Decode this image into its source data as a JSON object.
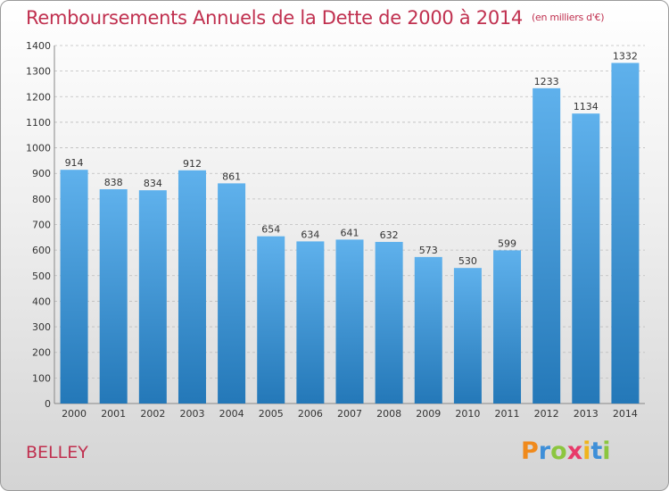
{
  "header": {
    "title": "Remboursements Annuels de la Dette de 2000 à 2014",
    "unit": "(en milliers d'€)"
  },
  "footer": {
    "commune": "BELLEY",
    "logo_text": "Proxiti",
    "logo_letters": [
      {
        "ch": "P",
        "color": "#f08a1c"
      },
      {
        "ch": "r",
        "color": "#3e8fd8"
      },
      {
        "ch": "o",
        "color": "#8cc63f"
      },
      {
        "ch": "x",
        "color": "#e83a6a"
      },
      {
        "ch": "i",
        "color": "#f0b41c"
      },
      {
        "ch": "t",
        "color": "#3e8fd8"
      },
      {
        "ch": "i",
        "color": "#8cc63f"
      }
    ]
  },
  "colors": {
    "bar_top": "#5fb1ec",
    "bar_bottom": "#2478b8",
    "title": "#c0304f",
    "grid": "#bdbdbd",
    "axis_text": "#333333"
  },
  "chart_data": {
    "type": "bar",
    "categories": [
      "2000",
      "2001",
      "2002",
      "2003",
      "2004",
      "2005",
      "2006",
      "2007",
      "2008",
      "2009",
      "2010",
      "2011",
      "2012",
      "2013",
      "2014"
    ],
    "values": [
      914,
      838,
      834,
      912,
      861,
      654,
      634,
      641,
      632,
      573,
      530,
      599,
      1233,
      1134,
      1332
    ],
    "ylim": [
      0,
      1400
    ],
    "yticks": [
      0,
      100,
      200,
      300,
      400,
      500,
      600,
      700,
      800,
      900,
      1000,
      1100,
      1200,
      1300,
      1400
    ],
    "grid": true,
    "data_labels": true
  }
}
